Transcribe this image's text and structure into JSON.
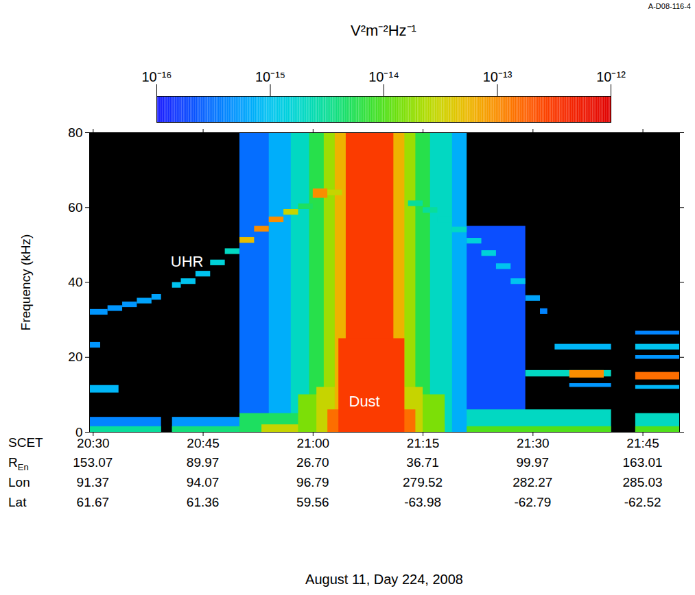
{
  "chart_data": {
    "type": "heatmap",
    "figure_id": "A-D08-116-4",
    "x_label": "SCET",
    "y_label": "Frequency (kHz)",
    "caption": "August 11, Day 224, 2008",
    "xlim": [
      1229.5,
      1310
    ],
    "xticks": [
      {
        "value": 1230,
        "label": "20:30"
      },
      {
        "value": 1245,
        "label": "20:45"
      },
      {
        "value": 1260,
        "label": "21:00"
      },
      {
        "value": 1275,
        "label": "21:15"
      },
      {
        "value": 1290,
        "label": "21:30"
      },
      {
        "value": 1305,
        "label": "21:45"
      }
    ],
    "ylim": [
      0,
      80
    ],
    "yticks": [
      0,
      20,
      40,
      60,
      80
    ],
    "ephemeris": [
      {
        "name": "R",
        "subscript": "En",
        "values": [
          "153.07",
          "89.97",
          "26.70",
          "36.71",
          "99.97",
          "163.01"
        ]
      },
      {
        "name": "Lon",
        "values": [
          "91.37",
          "94.07",
          "96.79",
          "279.52",
          "282.27",
          "285.03"
        ]
      },
      {
        "name": "Lat",
        "values": [
          "61.67",
          "61.36",
          "59.56",
          "-63.98",
          "-62.79",
          "-62.52"
        ]
      }
    ],
    "colorbar": {
      "label": "V²m⁻²Hz⁻¹",
      "log": true,
      "range": [
        1e-16,
        1e-12
      ],
      "ticks": [
        {
          "value": 1e-16,
          "label": "10⁻¹⁶"
        },
        {
          "value": 1e-15,
          "label": "10⁻¹⁵"
        },
        {
          "value": 1e-14,
          "label": "10⁻¹⁴"
        },
        {
          "value": 1e-13,
          "label": "10⁻¹³"
        },
        {
          "value": 1e-12,
          "label": "10⁻¹²"
        }
      ]
    },
    "annotations": [
      {
        "text": "UHR",
        "x": 1242.8,
        "y": 45.5
      },
      {
        "text": "Dust",
        "x": 1267,
        "y": 8.2
      }
    ],
    "patches": [
      {
        "t": [
          1229.5,
          1239.3
        ],
        "f": [
          0,
          4
        ],
        "v": 4e-16
      },
      {
        "t": [
          1229.5,
          1239.3
        ],
        "f": [
          0,
          1.5
        ],
        "v": 3e-15
      },
      {
        "t": [
          1240.8,
          1250
        ],
        "f": [
          0,
          4
        ],
        "v": 5e-16
      },
      {
        "t": [
          1240.8,
          1250
        ],
        "f": [
          0,
          1.5
        ],
        "v": 4e-15
      },
      {
        "t": [
          1229.5,
          1233.5
        ],
        "f": [
          10.5,
          12.5
        ],
        "v": 8e-16
      },
      {
        "t": [
          1229.5,
          1231
        ],
        "f": [
          22.5,
          24
        ],
        "v": 5e-16
      },
      {
        "t": [
          1276,
          1289
        ],
        "f": [
          4,
          55
        ],
        "v": 2e-16
      },
      {
        "t": [
          1276,
          1300.7
        ],
        "f": [
          0,
          6
        ],
        "v": 2e-15
      },
      {
        "t": [
          1276,
          1300.7
        ],
        "f": [
          0,
          1.5
        ],
        "v": 1e-14
      },
      {
        "t": [
          1304,
          1310
        ],
        "f": [
          0,
          5
        ],
        "v": 2e-15
      },
      {
        "t": [
          1304,
          1310
        ],
        "f": [
          0,
          1.5
        ],
        "v": 1e-14
      },
      {
        "t": [
          1289,
          1300.7
        ],
        "f": [
          14.8,
          16.5
        ],
        "v": 2e-15
      },
      {
        "t": [
          1295,
          1299.7
        ],
        "f": [
          14.5,
          16.5
        ],
        "v": 1e-13
      },
      {
        "t": [
          1304,
          1310
        ],
        "f": [
          14,
          16
        ],
        "v": 1.5e-13
      },
      {
        "t": [
          1295,
          1300.7
        ],
        "f": [
          12,
          13
        ],
        "v": 5e-16
      },
      {
        "t": [
          1304,
          1310
        ],
        "f": [
          11.5,
          12.5
        ],
        "v": 8e-16
      },
      {
        "t": [
          1293,
          1300.7
        ],
        "f": [
          22,
          23.5
        ],
        "v": 8e-16
      },
      {
        "t": [
          1304,
          1310
        ],
        "f": [
          22,
          23.5
        ],
        "v": 1e-15
      },
      {
        "t": [
          1304,
          1310
        ],
        "f": [
          19.5,
          20.5
        ],
        "v": 5e-16
      },
      {
        "t": [
          1304,
          1310
        ],
        "f": [
          26,
          27
        ],
        "v": 4e-16
      },
      {
        "t": [
          1250,
          1256
        ],
        "f": [
          0,
          80
        ],
        "v": 3e-16
      },
      {
        "t": [
          1254,
          1281
        ],
        "f": [
          0,
          80
        ],
        "v": 7e-16
      },
      {
        "t": [
          1257,
          1279
        ],
        "f": [
          0,
          80
        ],
        "v": 2e-15
      },
      {
        "t": [
          1259.5,
          1276
        ],
        "f": [
          0,
          80
        ],
        "v": 6e-15
      },
      {
        "t": [
          1250,
          1260
        ],
        "f": [
          0,
          5
        ],
        "v": 5e-15
      },
      {
        "t": [
          1253,
          1278
        ],
        "f": [
          0,
          2
        ],
        "v": 3e-14
      },
      {
        "t": [
          1258,
          1278
        ],
        "f": [
          0,
          10
        ],
        "v": 1.5e-14
      },
      {
        "t": [
          1261.5,
          1274
        ],
        "f": [
          0,
          80
        ],
        "v": 2e-14
      },
      {
        "t": [
          1260.5,
          1275
        ],
        "f": [
          0,
          12
        ],
        "v": 3e-14
      },
      {
        "t": [
          1263,
          1272.5
        ],
        "f": [
          0,
          80
        ],
        "v": 6e-14
      },
      {
        "t": [
          1262,
          1274
        ],
        "f": [
          0,
          6
        ],
        "v": 1.5e-13
      },
      {
        "t": [
          1264.5,
          1271
        ],
        "f": [
          0,
          80
        ],
        "v": 3e-13
      },
      {
        "t": [
          1263.5,
          1272.5
        ],
        "f": [
          0,
          25
        ],
        "v": 3e-13
      },
      {
        "t": [
          1229.5,
          1232
        ],
        "f": [
          31.3,
          32.8
        ],
        "v": 5e-16
      },
      {
        "t": [
          1232,
          1234
        ],
        "f": [
          32.3,
          33.8
        ],
        "v": 5e-16
      },
      {
        "t": [
          1234,
          1236
        ],
        "f": [
          33.3,
          34.8
        ],
        "v": 5e-16
      },
      {
        "t": [
          1236,
          1238
        ],
        "f": [
          34.3,
          35.8
        ],
        "v": 6e-16
      },
      {
        "t": [
          1238,
          1239.3
        ],
        "f": [
          35.3,
          36.8
        ],
        "v": 6e-16
      },
      {
        "t": [
          1240.8,
          1242
        ],
        "f": [
          38.5,
          40
        ],
        "v": 1e-15
      },
      {
        "t": [
          1242,
          1244
        ],
        "f": [
          39.5,
          41
        ],
        "v": 1e-15
      },
      {
        "t": [
          1244,
          1246
        ],
        "f": [
          41.5,
          43
        ],
        "v": 1e-15
      },
      {
        "t": [
          1246,
          1248
        ],
        "f": [
          44.5,
          46
        ],
        "v": 1.5e-15
      },
      {
        "t": [
          1248,
          1250
        ],
        "f": [
          47.5,
          49
        ],
        "v": 2e-15
      },
      {
        "t": [
          1250,
          1252
        ],
        "f": [
          50.5,
          52
        ],
        "v": 5e-14
      },
      {
        "t": [
          1252,
          1254
        ],
        "f": [
          53.5,
          55
        ],
        "v": 1e-13
      },
      {
        "t": [
          1254,
          1256
        ],
        "f": [
          56,
          57.5
        ],
        "v": 1e-13
      },
      {
        "t": [
          1256,
          1258
        ],
        "f": [
          58,
          59.5
        ],
        "v": 3e-14
      },
      {
        "t": [
          1258,
          1260
        ],
        "f": [
          59.5,
          61
        ],
        "v": 5e-15
      },
      {
        "t": [
          1260,
          1262
        ],
        "f": [
          62.5,
          65
        ],
        "v": 1e-13
      },
      {
        "t": [
          1262,
          1264
        ],
        "f": [
          63.2,
          64.7
        ],
        "v": 3e-14
      },
      {
        "t": [
          1273,
          1275
        ],
        "f": [
          60.3,
          61.8
        ],
        "v": 3e-15
      },
      {
        "t": [
          1275,
          1277
        ],
        "f": [
          58.5,
          60
        ],
        "v": 3e-15
      },
      {
        "t": [
          1277,
          1279
        ],
        "f": [
          56,
          57.5
        ],
        "v": 2e-15
      },
      {
        "t": [
          1279,
          1281
        ],
        "f": [
          53.3,
          54.8
        ],
        "v": 2e-15
      },
      {
        "t": [
          1281,
          1283
        ],
        "f": [
          50.3,
          51.8
        ],
        "v": 1.5e-15
      },
      {
        "t": [
          1283,
          1285
        ],
        "f": [
          47,
          48.5
        ],
        "v": 1.5e-15
      },
      {
        "t": [
          1285,
          1287
        ],
        "f": [
          43.5,
          45
        ],
        "v": 1e-15
      },
      {
        "t": [
          1287,
          1289
        ],
        "f": [
          39.5,
          41
        ],
        "v": 1e-15
      },
      {
        "t": [
          1289,
          1291
        ],
        "f": [
          35,
          36.5
        ],
        "v": 6e-16
      },
      {
        "t": [
          1291,
          1292
        ],
        "f": [
          31.5,
          33
        ],
        "v": 4e-16
      }
    ]
  }
}
